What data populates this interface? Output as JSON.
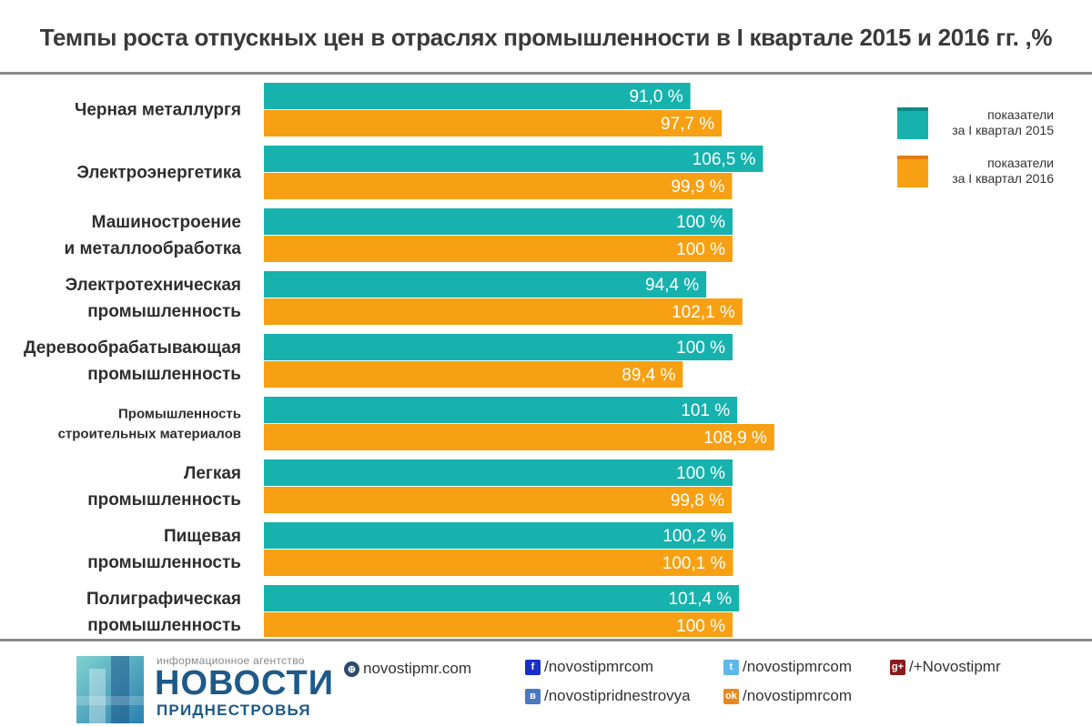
{
  "title": "Темпы роста отпускных цен в отраслях промышленности в I квартале 2015 и 2016 гг. ,%",
  "colors": {
    "series2015": "#17b2ad",
    "series2016": "#f7a013",
    "rule": "#8a8a8a"
  },
  "chart_data": {
    "type": "bar",
    "orientation": "horizontal",
    "title": "Темпы роста отпускных цен в отраслях промышленности в I квартале 2015 и 2016 гг. ,%",
    "categories": [
      [
        "Черная металлургя"
      ],
      [
        "Электроэнергетика"
      ],
      [
        "Машиностроение",
        "и металлообработка"
      ],
      [
        "Электротехническая",
        "промышленность"
      ],
      [
        "Деревообрабатывающая",
        "промышленность"
      ],
      [
        "Промышленность",
        "строительных материалов"
      ],
      [
        "Легкая",
        "промышленность"
      ],
      [
        "Пищевая",
        "промышленность"
      ],
      [
        "Полиграфическая",
        "промышленность"
      ]
    ],
    "series": [
      {
        "name": "показатели за I квартал 2015",
        "color": "#17b2ad",
        "values": [
          91.0,
          106.5,
          100,
          94.4,
          100,
          101,
          100,
          100.2,
          101.4
        ],
        "labels": [
          "91,0 %",
          "106,5 %",
          "100 %",
          "94,4 %",
          "100 %",
          "101 %",
          "100 %",
          "100,2 %",
          "101,4 %"
        ]
      },
      {
        "name": "показатели за I квартал 2016",
        "color": "#f7a013",
        "values": [
          97.7,
          99.9,
          100,
          102.1,
          89.4,
          108.9,
          99.8,
          100.1,
          100
        ],
        "labels": [
          "97,7 %",
          "99,9 %",
          "100 %",
          "102,1 %",
          "89,4 %",
          "108,9 %",
          "99,8 %",
          "100,1 %",
          "100 %"
        ]
      }
    ],
    "legend_position": "top-right",
    "grid": false
  },
  "legend": {
    "item2015": [
      "показатели",
      "за I квартал 2015"
    ],
    "item2016": [
      "показатели",
      "за I квартал 2016"
    ]
  },
  "footer": {
    "logo_tag": "информационное агентство",
    "logo_main": "НОВОСТИ",
    "logo_sub": "ПРИДНЕСТРОВЬЯ",
    "site": "novostipmr.com",
    "facebook": "/novostipmrcom",
    "vk": "/novostipridnestrovya",
    "twitter": "/novostipmrcom",
    "odnoklassniki": "/novostipmrcom",
    "googleplus": "/+Novostipmr",
    "icons": {
      "site": "globe-icon",
      "facebook": "facebook-icon",
      "vk": "vk-icon",
      "twitter": "twitter-icon",
      "odnoklassniki": "odnoklassniki-icon",
      "googleplus": "google-plus-icon"
    }
  }
}
